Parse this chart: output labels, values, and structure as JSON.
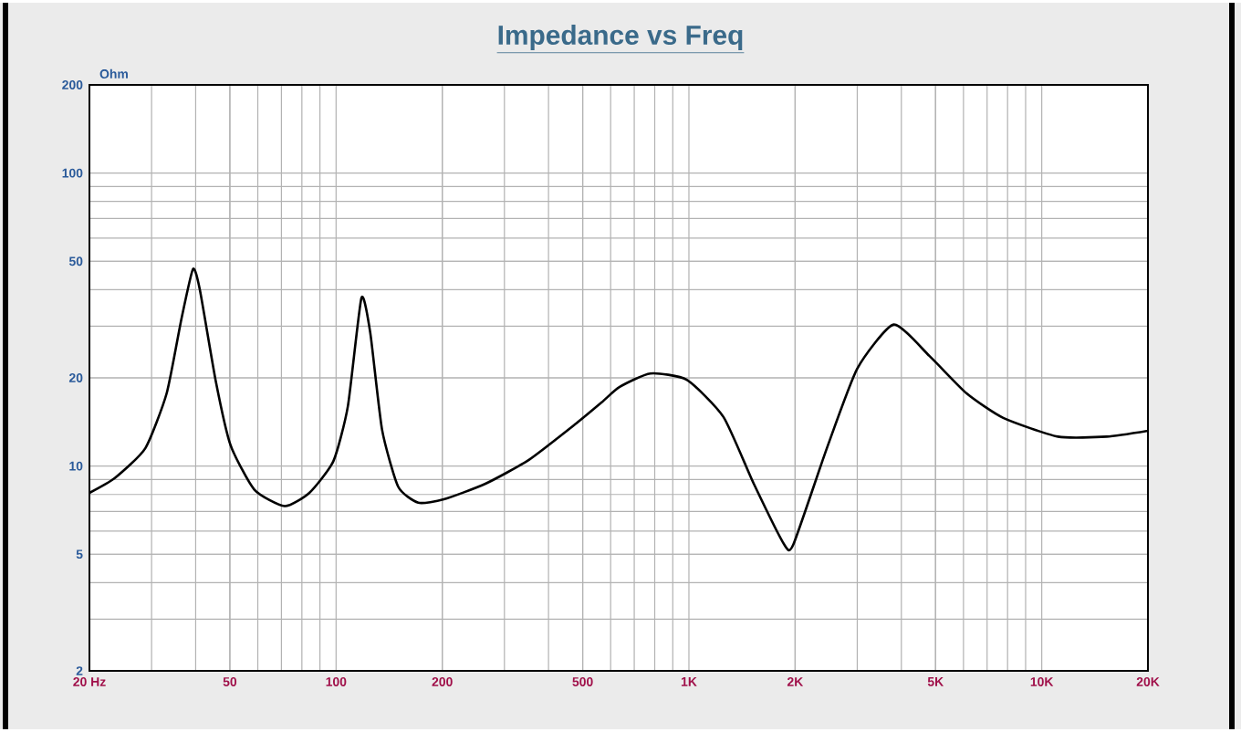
{
  "chart_data": {
    "type": "line",
    "title": "Impedance vs Freq",
    "ylabel": "Ohm",
    "x": [
      20,
      23.6,
      28.8,
      33.1,
      36.4,
      39.3,
      41.1,
      45.6,
      50.2,
      58.7,
      71.5,
      84,
      98.3,
      108,
      118,
      125,
      135,
      150,
      171,
      202,
      265,
      352,
      480,
      566,
      635,
      778,
      986,
      1253,
      1527,
      1862,
      1977,
      2460,
      3000,
      3805,
      4830,
      6125,
      7780,
      11120,
      15270,
      20000
    ],
    "series": [
      {
        "color": "#000000",
        "values": [
          8.1,
          9.1,
          11.5,
          17.7,
          31.5,
          47,
          40,
          19.5,
          11.8,
          8.3,
          7.3,
          8.1,
          10.4,
          16,
          37.5,
          28.5,
          13.3,
          8.5,
          7.5,
          7.7,
          8.7,
          10.5,
          14,
          16.5,
          18.6,
          20.7,
          19.7,
          14.7,
          8.7,
          5.4,
          5.4,
          11.5,
          21.5,
          30.4,
          23.6,
          17.7,
          14.6,
          12.6,
          12.6,
          13.2
        ]
      }
    ],
    "xlim": [
      20,
      20000
    ],
    "ylim": [
      2,
      200
    ],
    "xticks": [
      {
        "value": 20,
        "label": "20  Hz"
      },
      50,
      100,
      200,
      500,
      {
        "value": 1000,
        "label": "1K"
      },
      {
        "value": 2000,
        "label": "2K"
      },
      {
        "value": 5000,
        "label": "5K"
      },
      {
        "value": 10000,
        "label": "10K"
      },
      {
        "value": 20000,
        "label": "20K"
      }
    ],
    "yticks": [
      2,
      5,
      10,
      20,
      50,
      100,
      200
    ],
    "log": "xy",
    "grid": true,
    "marker": "none",
    "line_style": "solid"
  }
}
